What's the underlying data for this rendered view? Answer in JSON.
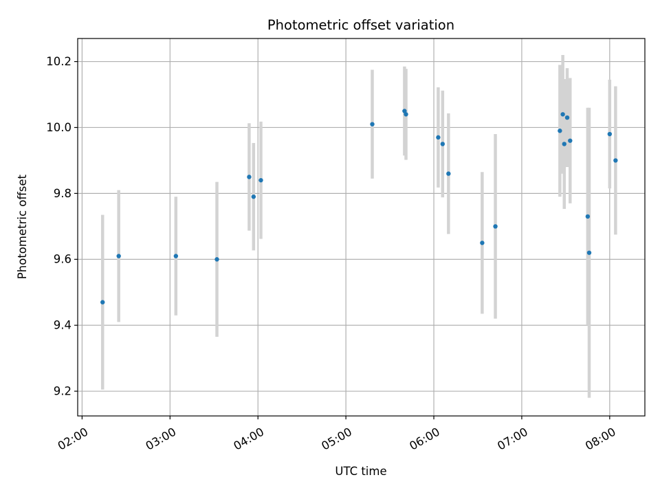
{
  "chart_data": {
    "type": "scatter",
    "title": "Photometric offset variation",
    "xlabel": "UTC time",
    "ylabel": "Photometric offset",
    "x_unit": "UTC time (HH:MM)",
    "xlim": [
      "01:57",
      "08:24"
    ],
    "ylim": [
      9.125,
      10.27
    ],
    "xticks": [
      "02:00",
      "03:00",
      "04:00",
      "05:00",
      "06:00",
      "07:00",
      "08:00"
    ],
    "yticks": [
      "9.2",
      "9.4",
      "9.6",
      "9.8",
      "10.0",
      "10.2"
    ],
    "grid": true,
    "legend": "none",
    "colors": {
      "points": "#1f77b4",
      "errorbars": "#d3d3d3",
      "grid": "#b0b0b0"
    },
    "points": [
      {
        "x": "02:14",
        "y": 9.47,
        "yerr": 0.265
      },
      {
        "x": "02:25",
        "y": 9.61,
        "yerr": 0.2
      },
      {
        "x": "03:04",
        "y": 9.61,
        "yerr": 0.18
      },
      {
        "x": "03:32",
        "y": 9.6,
        "yerr": 0.235
      },
      {
        "x": "03:54",
        "y": 9.85,
        "yerr": 0.163
      },
      {
        "x": "03:57",
        "y": 9.79,
        "yerr": 0.163
      },
      {
        "x": "04:02",
        "y": 9.84,
        "yerr": 0.178
      },
      {
        "x": "05:18",
        "y": 10.01,
        "yerr": 0.165
      },
      {
        "x": "05:40",
        "y": 10.05,
        "yerr": 0.135
      },
      {
        "x": "05:41",
        "y": 10.04,
        "yerr": 0.138
      },
      {
        "x": "06:03",
        "y": 9.97,
        "yerr": 0.152
      },
      {
        "x": "06:06",
        "y": 9.95,
        "yerr": 0.162
      },
      {
        "x": "06:10",
        "y": 9.86,
        "yerr": 0.183
      },
      {
        "x": "06:33",
        "y": 9.65,
        "yerr": 0.215
      },
      {
        "x": "06:42",
        "y": 9.7,
        "yerr": 0.28
      },
      {
        "x": "07:26",
        "y": 9.99,
        "yerr": 0.2
      },
      {
        "x": "07:28",
        "y": 10.04,
        "yerr": 0.18
      },
      {
        "x": "07:29",
        "y": 9.95,
        "yerr": 0.197
      },
      {
        "x": "07:31",
        "y": 10.03,
        "yerr": 0.15
      },
      {
        "x": "07:33",
        "y": 9.96,
        "yerr": 0.19
      },
      {
        "x": "07:45",
        "y": 9.73,
        "yerr": 0.33
      },
      {
        "x": "07:46",
        "y": 9.62,
        "yerr": 0.44
      },
      {
        "x": "08:00",
        "y": 9.98,
        "yerr": 0.165
      },
      {
        "x": "08:04",
        "y": 9.9,
        "yerr": 0.225
      }
    ]
  }
}
